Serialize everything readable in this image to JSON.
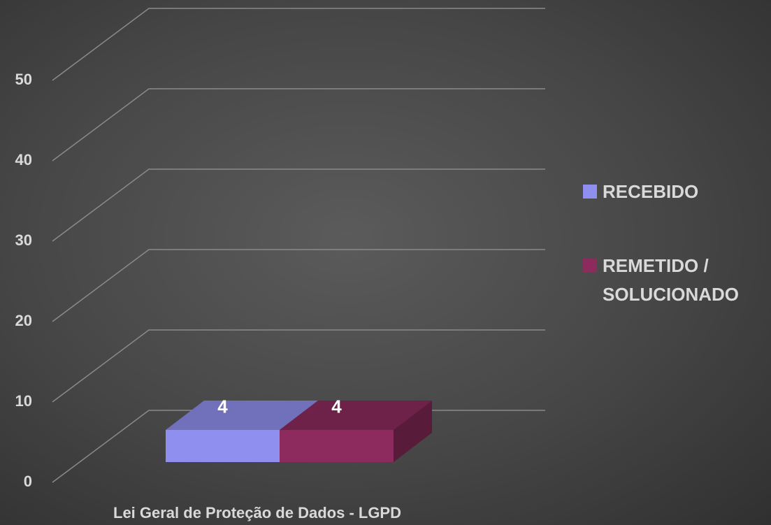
{
  "chart_data": {
    "type": "bar3d",
    "categories": [
      "Lei Geral de Proteção de Dados - LGPD"
    ],
    "series": [
      {
        "name": "RECEBIDO",
        "color": "#8f8ff0",
        "values": [
          4
        ]
      },
      {
        "name": "REMETIDO / SOLUCIONADO",
        "color": "#8e2b5e",
        "values": [
          4
        ]
      }
    ],
    "ylim": [
      0,
      50
    ],
    "yticks": [
      0,
      10,
      20,
      30,
      40,
      50
    ],
    "grid": true,
    "legend": "right"
  }
}
